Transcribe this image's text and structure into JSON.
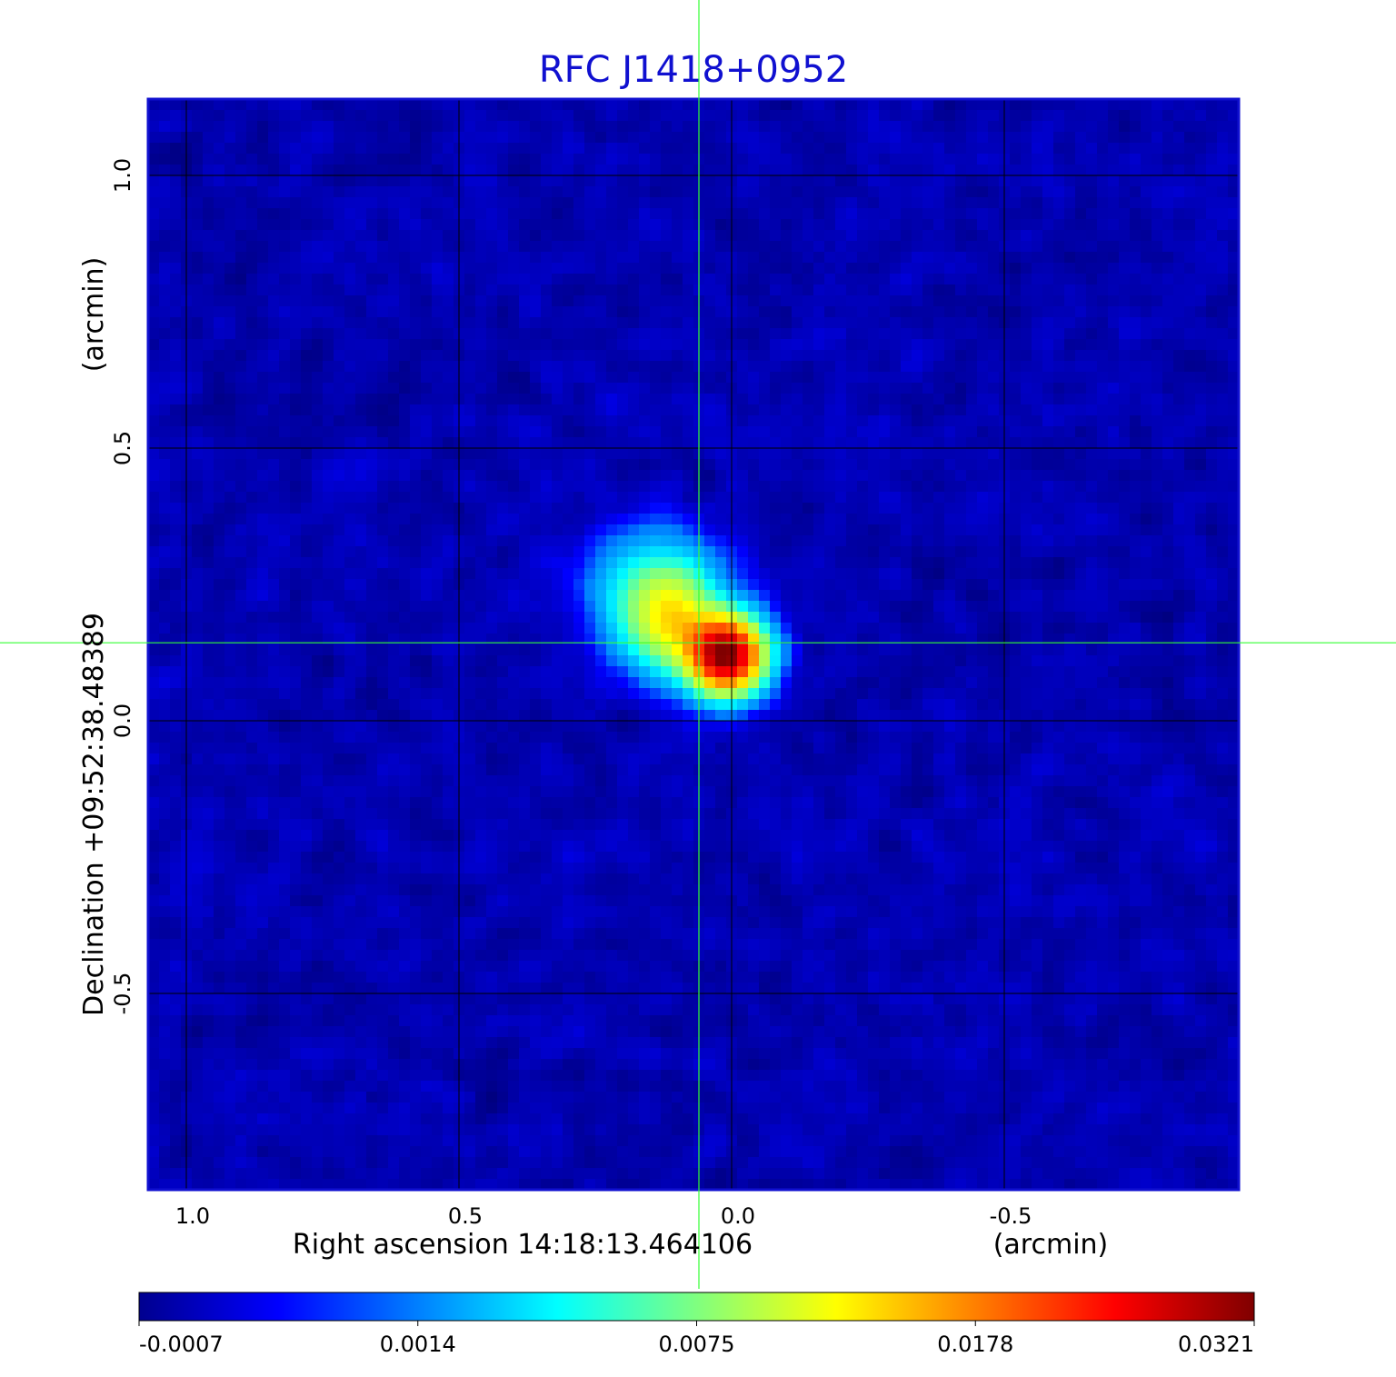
{
  "chart_data": {
    "type": "heatmap",
    "title": "RFC J1418+0952",
    "xlabel": "Right ascension  14:18:13.464106",
    "xunit": "(arcmin)",
    "ylabel": "Declination  +09:52:38.48389",
    "yunit": "(arcmin)",
    "xlim": [
      1.07,
      -0.93
    ],
    "ylim": [
      -0.86,
      1.14
    ],
    "x_ticks": [
      {
        "value": 1.0,
        "label": "1.0"
      },
      {
        "value": 0.5,
        "label": "0.5"
      },
      {
        "value": 0.0,
        "label": "0.0"
      },
      {
        "value": -0.5,
        "label": "-0.5"
      }
    ],
    "y_ticks": [
      {
        "value": 1.0,
        "label": "1.0"
      },
      {
        "value": 0.5,
        "label": "0.5"
      },
      {
        "value": 0.0,
        "label": "0.0"
      },
      {
        "value": -0.5,
        "label": "-0.5"
      }
    ],
    "grid": true,
    "crosshair": {
      "x": 0.06,
      "y": 0.143
    },
    "colormap": "jet",
    "colorbar": {
      "labels": [
        "-0.0007",
        "0.0014",
        "0.0075",
        "0.0178",
        "0.0321"
      ],
      "min": -0.0007,
      "max": 0.0321
    },
    "sources": [
      {
        "ra": 0.01,
        "dec": 0.12,
        "peak": 0.0321,
        "sigma_ra": 0.045,
        "sigma_dec": 0.045
      },
      {
        "ra": 0.11,
        "dec": 0.18,
        "peak": 0.0105,
        "sigma_ra": 0.055,
        "sigma_dec": 0.06
      },
      {
        "ra": 0.14,
        "dec": 0.24,
        "peak": 0.0055,
        "sigma_ra": 0.075,
        "sigma_dec": 0.07
      }
    ],
    "noise_level": -0.0003
  },
  "colors": {
    "title": "#1010d0",
    "crosshair": "#33ff33",
    "grid": "#000000",
    "axis_text": "#000000"
  }
}
